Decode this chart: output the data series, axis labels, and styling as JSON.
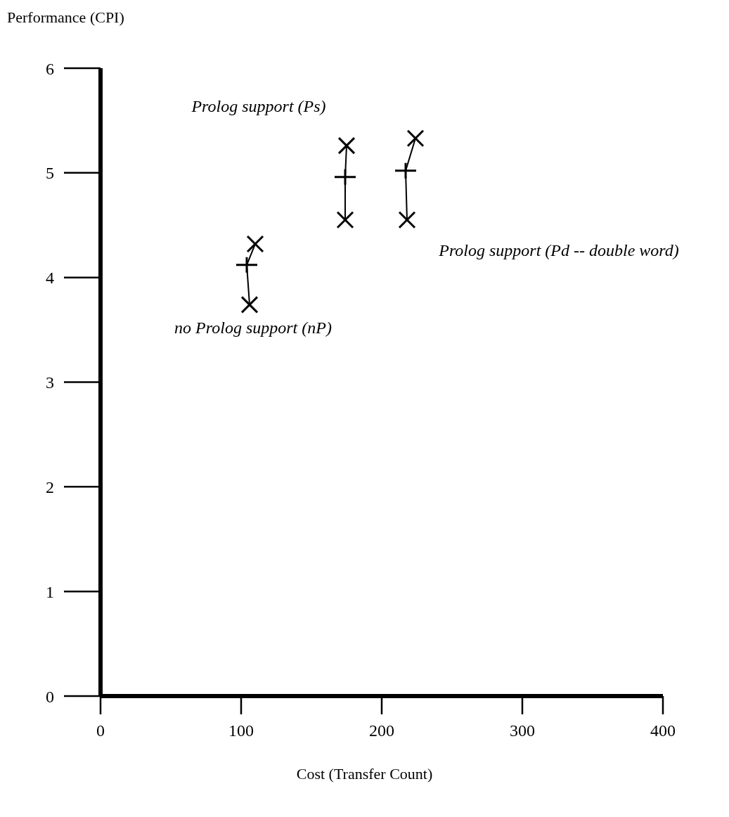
{
  "chart_data": {
    "type": "scatter",
    "xlabel": "Cost (Transfer Count)",
    "ylabel": "Performance (CPI)",
    "xlim": [
      0,
      400
    ],
    "ylim": [
      0,
      6
    ],
    "xticks": [
      0,
      100,
      200,
      300,
      400
    ],
    "yticks": [
      0,
      1,
      2,
      3,
      4,
      5,
      6
    ],
    "legend": false,
    "grid": false,
    "series": [
      {
        "type": "line",
        "color": "#000000",
        "x": [
          106,
          104,
          110
        ],
        "values": [
          3.74,
          4.12,
          4.32
        ]
      },
      {
        "type": "line",
        "color": "#000000",
        "x": [
          174,
          174,
          175
        ],
        "values": [
          4.55,
          4.96,
          5.26
        ]
      },
      {
        "type": "line",
        "color": "#000000",
        "x": [
          218,
          217,
          224
        ],
        "values": [
          4.55,
          5.02,
          5.33
        ]
      },
      {
        "color": "#000000",
        "marker": "x",
        "x": [
          106,
          110,
          174,
          175,
          218,
          224
        ],
        "values": [
          3.74,
          4.32,
          4.55,
          5.26,
          4.55,
          5.33
        ]
      },
      {
        "color": "#000000",
        "marker": "cross",
        "x": [
          104,
          174,
          217
        ],
        "values": [
          4.12,
          4.96,
          5.02
        ]
      }
    ],
    "annotations": [
      "no Prolog support (nP)",
      "Prolog support (Ps)",
      "Prolog support (Pd -- double word)"
    ]
  }
}
